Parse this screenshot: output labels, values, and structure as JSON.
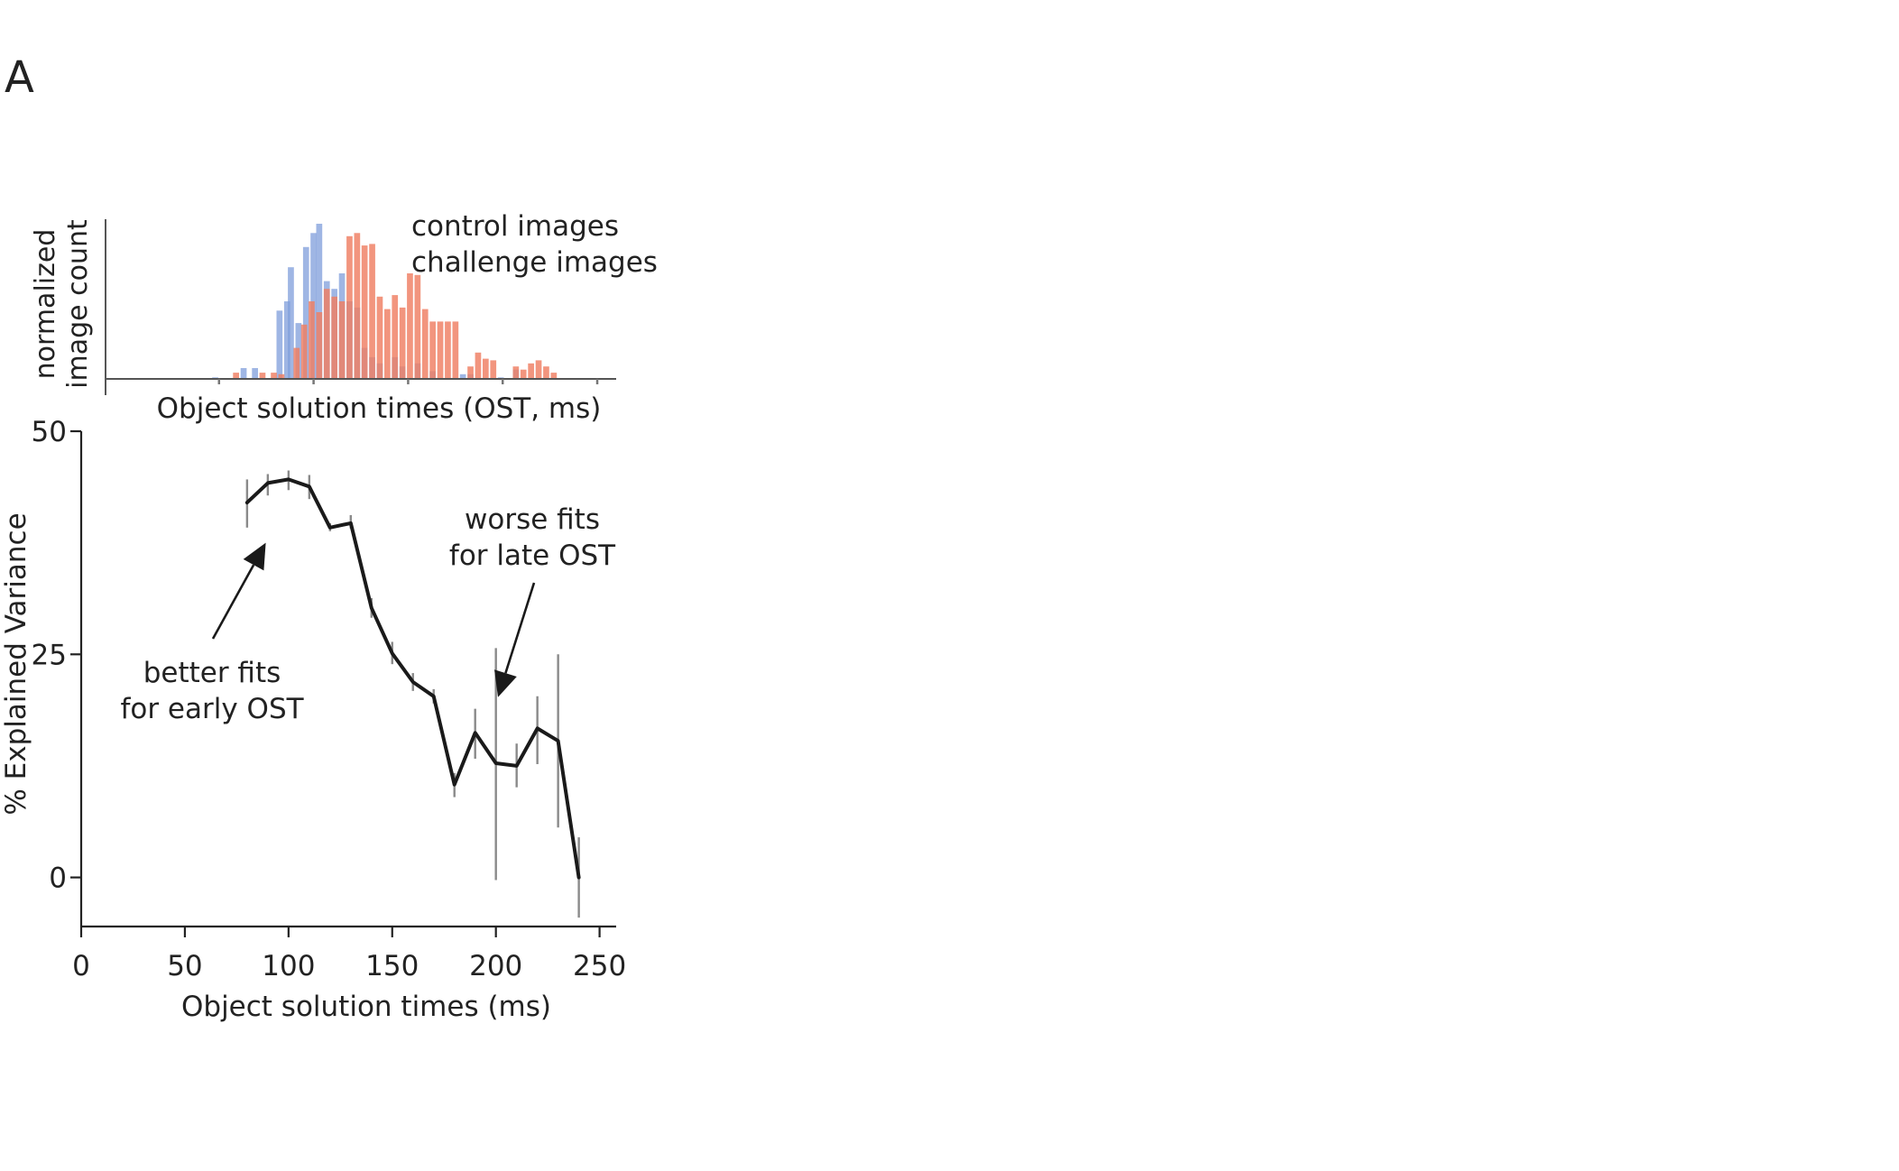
{
  "panel_label": "A",
  "chart_data": [
    {
      "type": "bar",
      "subtype": "overlapping-histogram",
      "xlabel": "Object solution times (OST, ms)",
      "ylabel_lines": [
        "normalized",
        "image  count"
      ],
      "xlim": [
        -10,
        260
      ],
      "ylim": [
        0,
        1
      ],
      "bin_width": 4,
      "series": [
        {
          "name": "control images",
          "color": "#7f9ddb",
          "label_color": "#3a6fb8",
          "x": [
            48,
            63,
            69,
            82,
            86,
            88,
            92,
            96,
            100,
            103,
            107,
            111,
            115,
            119,
            123,
            127,
            131,
            135,
            143,
            147,
            155,
            163,
            179,
            183,
            199,
            207
          ],
          "values": [
            0.01,
            0.07,
            0.07,
            0.44,
            0.5,
            0.72,
            0.36,
            0.85,
            0.94,
            1.0,
            0.63,
            0.58,
            0.68,
            0.5,
            0.46,
            0.2,
            0.14,
            0.1,
            0.14,
            0.08,
            0.1,
            0.05,
            0.03,
            0.03,
            0.01,
            0.06
          ]
        },
        {
          "name": "challenge images",
          "color": "#ef7e62",
          "label_color": "#e0553c",
          "x": [
            59,
            73,
            79,
            83,
            91,
            95,
            99,
            103,
            107,
            111,
            115,
            119,
            123,
            127,
            131,
            135,
            139,
            143,
            147,
            151,
            155,
            159,
            163,
            167,
            171,
            175,
            183,
            187,
            191,
            195,
            207,
            211,
            215,
            219,
            223,
            227
          ],
          "values": [
            0.04,
            0.04,
            0.04,
            0.03,
            0.2,
            0.35,
            0.5,
            0.43,
            0.58,
            0.53,
            0.5,
            0.92,
            0.94,
            0.86,
            0.87,
            0.53,
            0.45,
            0.54,
            0.46,
            0.68,
            0.67,
            0.45,
            0.37,
            0.37,
            0.37,
            0.37,
            0.08,
            0.17,
            0.13,
            0.12,
            0.08,
            0.06,
            0.1,
            0.12,
            0.08,
            0.04
          ]
        }
      ]
    },
    {
      "type": "line",
      "xlabel": "Object solution times (ms)",
      "ylabel": "% Explained Variance",
      "xlim": [
        0,
        258
      ],
      "ylim": [
        -5.5,
        50
      ],
      "xticks": [
        0,
        50,
        100,
        150,
        200,
        250
      ],
      "yticks": [
        0,
        25,
        50
      ],
      "series": [
        {
          "color": "#1a1a1a",
          "x": [
            80,
            90,
            100,
            110,
            120,
            130,
            140,
            150,
            160,
            170,
            180,
            190,
            200,
            210,
            220,
            230,
            240
          ],
          "y": [
            42,
            44.2,
            44.6,
            43.8,
            39.2,
            39.7,
            30.2,
            25.1,
            21.9,
            20.3,
            10.4,
            16.2,
            12.8,
            12.5,
            16.7,
            15.3,
            0
          ],
          "y_low": [
            39.2,
            42.8,
            43.4,
            42.4,
            38.8,
            39.1,
            29.1,
            23.9,
            20.9,
            19.5,
            9.0,
            13.3,
            -0.3,
            10.1,
            12.7,
            5.6,
            -4.5
          ],
          "y_high": [
            44.6,
            45.2,
            45.6,
            45.1,
            39.7,
            40.6,
            31.3,
            26.4,
            22.9,
            21.1,
            11.7,
            18.9,
            25.7,
            15.0,
            20.3,
            25.0,
            4.5
          ]
        }
      ],
      "annotations": [
        {
          "lines": [
            "better fits",
            "for early OST"
          ],
          "arrow_to": [
            89,
            37.5
          ]
        },
        {
          "lines": [
            "worse fits",
            "for late OST"
          ],
          "arrow_to": [
            201,
            20.2
          ]
        }
      ]
    }
  ]
}
